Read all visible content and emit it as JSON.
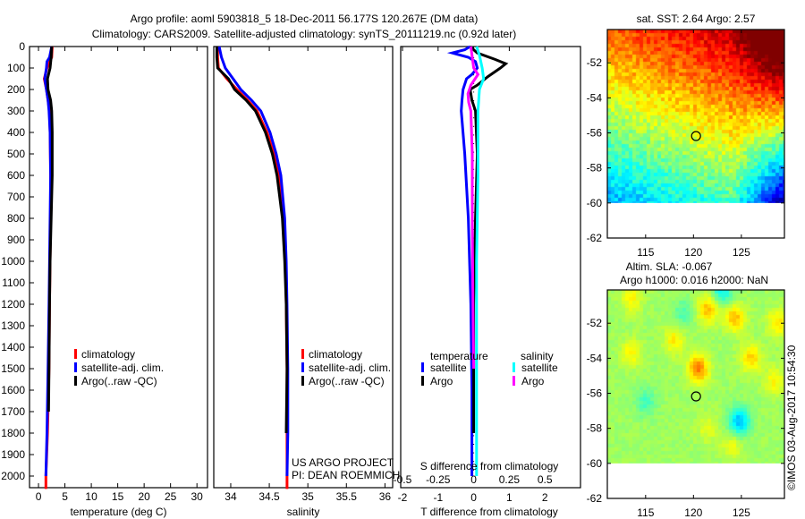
{
  "header": {
    "title_line1": "Argo profile: aoml 5903818_5 18-Dec-2011 56.177S 120.267E (DM data)",
    "title_line2": "Climatology: CARS2009. Satellite-adjusted climatology: synTS_20111219.nc (0.92d later)"
  },
  "credits": {
    "project": "US ARGO PROJECT",
    "pi": "PI: DEAN ROEMMICH",
    "stamp": "©IMOS 03-Aug-2017 10:54:30"
  },
  "colors": {
    "climatology": "#ff0000",
    "satellite": "#0000ff",
    "argo": "#000000",
    "sat_salinity": "#00ffff",
    "argo_salinity": "#ff00ff"
  },
  "chart_data": [
    {
      "type": "line",
      "id": "temperature",
      "xlabel": "temperature (deg C)",
      "ylabel": "",
      "xlim": [
        -1.7,
        32
      ],
      "ylim": [
        2060,
        0
      ],
      "xticks": [
        0,
        5,
        10,
        15,
        20,
        25,
        30
      ],
      "yticks": [
        0,
        100,
        200,
        300,
        400,
        500,
        600,
        700,
        800,
        900,
        1000,
        1100,
        1200,
        1300,
        1400,
        1500,
        1600,
        1700,
        1800,
        1900,
        2000
      ],
      "legend": [
        "climatology",
        "satellite-adj. clim.",
        "Argo(..raw -QC)"
      ],
      "series": [
        {
          "name": "climatology",
          "color": "#ff0000",
          "depth": [
            0,
            50,
            100,
            150,
            200,
            250,
            300,
            400,
            600,
            800,
            1000,
            1200,
            1500,
            1800,
            2000,
            2060
          ],
          "values": [
            2.6,
            2.5,
            1.6,
            1.1,
            1.5,
            1.8,
            2.1,
            2.2,
            2.3,
            2.3,
            2.2,
            2.1,
            2.0,
            1.7,
            1.4,
            1.4
          ]
        },
        {
          "name": "satellite-adj. clim.",
          "color": "#0000ff",
          "depth": [
            0,
            50,
            70,
            100,
            150,
            200,
            250,
            300,
            400,
            600,
            800,
            1000,
            1200,
            1500,
            1800,
            2000
          ],
          "values": [
            2.5,
            2.1,
            1.6,
            1.5,
            1.2,
            1.5,
            1.8,
            2.0,
            2.2,
            2.3,
            2.2,
            2.1,
            2.0,
            1.8,
            1.6,
            1.4
          ]
        },
        {
          "name": "Argo(..raw -QC)",
          "color": "#000000",
          "depth": [
            0,
            50,
            100,
            150,
            200,
            250,
            300,
            400,
            600,
            800,
            1000,
            1200,
            1500,
            1700
          ],
          "values": [
            2.5,
            2.4,
            2.2,
            1.7,
            1.8,
            2.3,
            2.5,
            2.6,
            2.6,
            2.4,
            2.2,
            2.1,
            2.0,
            1.9
          ]
        }
      ]
    },
    {
      "type": "line",
      "id": "salinity",
      "xlabel": "salinity",
      "xlim": [
        33.78,
        36.1
      ],
      "ylim": [
        2060,
        0
      ],
      "xticks": [
        34,
        34.5,
        35,
        35.5,
        36
      ],
      "legend": [
        "climatology",
        "satellite-adj. clim.",
        "Argo(..raw -QC)"
      ],
      "series": [
        {
          "name": "climatology",
          "color": "#ff0000",
          "depth": [
            0,
            50,
            100,
            150,
            200,
            250,
            300,
            400,
            500,
            600,
            800,
            1000,
            1200,
            1500,
            1800,
            2000,
            2060
          ],
          "values": [
            33.83,
            33.83,
            33.84,
            33.95,
            34.08,
            34.22,
            34.34,
            34.47,
            34.56,
            34.62,
            34.68,
            34.71,
            34.72,
            34.73,
            34.73,
            34.73,
            34.73
          ]
        },
        {
          "name": "satellite-adj. clim.",
          "color": "#0000ff",
          "depth": [
            0,
            50,
            100,
            150,
            200,
            250,
            300,
            400,
            500,
            600,
            800,
            1000,
            1200,
            1500,
            1800,
            2000
          ],
          "values": [
            33.85,
            33.88,
            33.93,
            34.03,
            34.13,
            34.27,
            34.39,
            34.51,
            34.59,
            34.65,
            34.7,
            34.72,
            34.73,
            34.74,
            34.74,
            34.73
          ]
        },
        {
          "name": "Argo(..raw -QC)",
          "color": "#000000",
          "depth": [
            0,
            50,
            100,
            150,
            200,
            250,
            300,
            400,
            500,
            600,
            800,
            1000,
            1200,
            1500,
            1800
          ],
          "values": [
            33.82,
            33.82,
            33.83,
            33.97,
            34.05,
            34.2,
            34.32,
            34.45,
            34.54,
            34.6,
            34.67,
            34.7,
            34.72,
            34.73,
            34.72
          ]
        }
      ]
    },
    {
      "type": "line",
      "id": "differences",
      "xlabel": "T difference from climatology",
      "xlabel_top": "S difference from climatology",
      "xlim": [
        -2.05,
        3.0
      ],
      "s_scale": 0.25,
      "ylim": [
        2060,
        0
      ],
      "xticks": [
        -2,
        -1,
        0,
        1,
        2
      ],
      "s_ticks": [
        "-0.5",
        "-0.25",
        "0",
        "0.25",
        "0.5"
      ],
      "s_tick_values": [
        -0.5,
        -0.25,
        0,
        0.25,
        0.5
      ],
      "legend": {
        "temperature_heading": "temperature",
        "salinity_heading": "salinity",
        "t_satellite": "satellite",
        "t_argo": "Argo",
        "s_satellite": "satellite",
        "s_argo": "Argo"
      },
      "series": [
        {
          "name": "T satellite",
          "color": "#0000ff",
          "kind": "T",
          "depth": [
            0,
            15,
            30,
            50,
            70,
            100,
            130,
            150,
            200,
            250,
            300,
            500,
            800,
            1200,
            1600,
            2000
          ],
          "values": [
            -0.1,
            -0.25,
            -0.6,
            -0.15,
            0.05,
            0.1,
            -0.05,
            -0.2,
            -0.3,
            -0.33,
            -0.35,
            -0.25,
            -0.15,
            -0.08,
            -0.05,
            -0.05
          ]
        },
        {
          "name": "T Argo",
          "color": "#000000",
          "kind": "T",
          "depth": [
            0,
            30,
            60,
            80,
            100,
            140,
            180,
            200,
            250,
            300,
            500,
            800,
            1200,
            1800
          ],
          "values": [
            -0.1,
            0.1,
            0.6,
            0.9,
            0.75,
            0.4,
            0.1,
            -0.1,
            -0.05,
            0.05,
            0.1,
            0.05,
            0.0,
            0.0
          ]
        },
        {
          "name": "S satellite",
          "color": "#00ffff",
          "kind": "S",
          "depth": [
            0,
            40,
            100,
            150,
            200,
            300,
            600,
            1000,
            1500,
            2000
          ],
          "values": [
            0.02,
            0.04,
            0.06,
            0.07,
            0.04,
            0.03,
            0.03,
            0.02,
            0.02,
            0.02
          ]
        },
        {
          "name": "S Argo",
          "color": "#ff00ff",
          "kind": "S",
          "depth": [
            0,
            50,
            100,
            130,
            180,
            220,
            260,
            300,
            500,
            800,
            1200,
            1500
          ],
          "values": [
            -0.02,
            -0.01,
            0.0,
            0.03,
            -0.02,
            -0.04,
            -0.035,
            -0.02,
            -0.01,
            -0.01,
            -0.005,
            0.0
          ]
        }
      ]
    },
    {
      "type": "heatmap",
      "id": "sst_map",
      "title": "sat. SST: 2.64 Argo: 2.57",
      "xlim": [
        111.0,
        129.5
      ],
      "ylim": [
        -62,
        -50.1
      ],
      "data_lat_min": -60,
      "xticks": [
        115,
        120,
        125
      ],
      "yticks": [
        -52,
        -54,
        -56,
        -58,
        -60,
        -62
      ],
      "marker": {
        "lon": 120.267,
        "lat": -56.177
      }
    },
    {
      "type": "heatmap",
      "id": "sla_map",
      "title": "Altim. SLA: -0.067",
      "subtitle": "Argo h1000: 0.016 h2000: NaN",
      "xlim": [
        111.0,
        129.5
      ],
      "ylim": [
        -62,
        -50.1
      ],
      "data_lat_min": -60,
      "xticks": [
        115,
        120,
        125
      ],
      "yticks": [
        -52,
        -54,
        -56,
        -58,
        -60,
        -62
      ],
      "marker": {
        "lon": 120.267,
        "lat": -56.177
      }
    }
  ]
}
